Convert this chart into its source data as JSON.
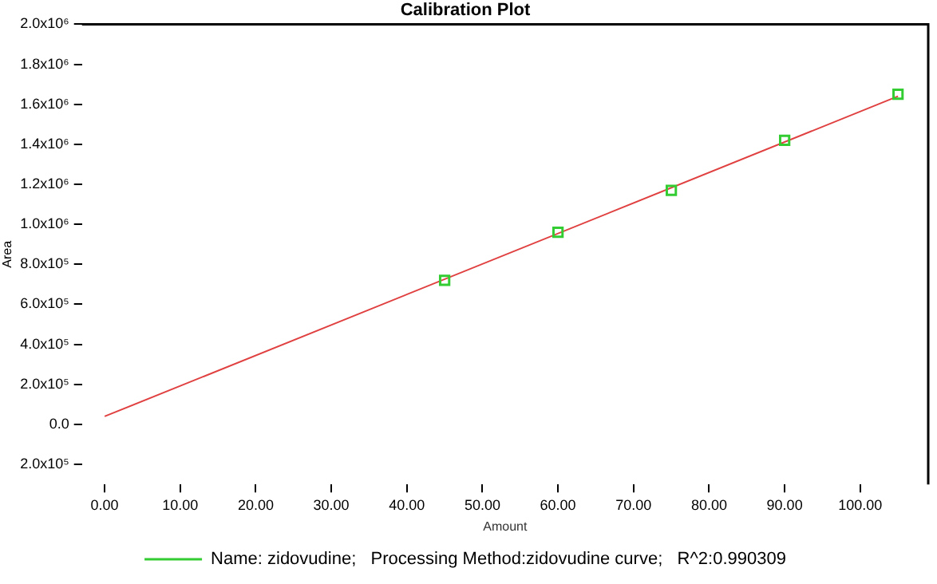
{
  "chart_data": {
    "type": "scatter",
    "title": "Calibration Plot",
    "xlabel": "Amount",
    "ylabel": "Area",
    "series": [
      {
        "name": "Name: zidovudine;   Processing Method:zidovudine curve;   R^2:0.990309",
        "type": "scatter",
        "color": "#33cc33",
        "marker": "square",
        "x": [
          45,
          60,
          75,
          90,
          105
        ],
        "values": [
          720000,
          960000,
          1170000,
          1420000,
          1650000
        ]
      },
      {
        "type": "line",
        "color": "#e04040",
        "marker": "none",
        "x": [
          0,
          105
        ],
        "values": [
          40000,
          1640000
        ]
      }
    ],
    "xlim": [
      -3,
      109
    ],
    "xticks": [
      {
        "value": 0,
        "label": "0.00"
      },
      {
        "value": 10,
        "label": "10.00"
      },
      {
        "value": 20,
        "label": "20.00"
      },
      {
        "value": 30,
        "label": "30.00"
      },
      {
        "value": 40,
        "label": "40.00"
      },
      {
        "value": 50,
        "label": "50.00"
      },
      {
        "value": 60,
        "label": "60.00"
      },
      {
        "value": 70,
        "label": "70.00"
      },
      {
        "value": 80,
        "label": "80.00"
      },
      {
        "value": 90,
        "label": "90.00"
      },
      {
        "value": 100,
        "label": "100.00"
      }
    ],
    "ylim": [
      -300000,
      2000000
    ],
    "yticks": [
      {
        "value": -200000,
        "label": "2.0x10⁵"
      },
      {
        "value": 0,
        "label": "0.0"
      },
      {
        "value": 200000,
        "label": "2.0x10⁵"
      },
      {
        "value": 400000,
        "label": "4.0x10⁵"
      },
      {
        "value": 600000,
        "label": "6.0x10⁵"
      },
      {
        "value": 800000,
        "label": "8.0x10⁵"
      },
      {
        "value": 1000000,
        "label": "1.0x10⁶"
      },
      {
        "value": 1200000,
        "label": "1.2x10⁶"
      },
      {
        "value": 1400000,
        "label": "1.4x10⁶"
      },
      {
        "value": 1600000,
        "label": "1.6x10⁶"
      },
      {
        "value": 1800000,
        "label": "1.8x10⁶"
      },
      {
        "value": 2000000,
        "label": "2.0x10⁶"
      }
    ],
    "grid": false,
    "legend": "bottom"
  }
}
